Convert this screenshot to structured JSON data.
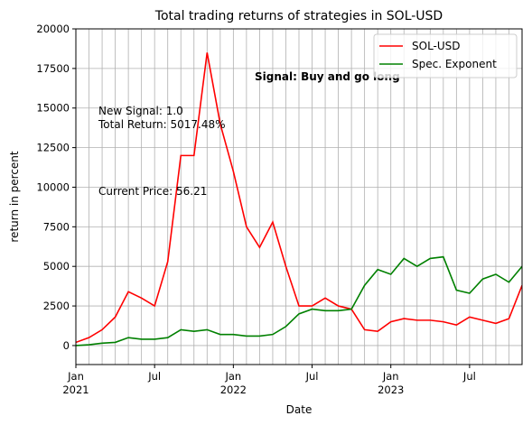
{
  "chart_data": {
    "type": "line",
    "title": "Total trading returns of strategies in SOL-USD",
    "xlabel": "Date",
    "ylabel": "return in percent",
    "x": [
      "2021-01",
      "2021-02",
      "2021-03",
      "2021-04",
      "2021-05",
      "2021-06",
      "2021-07",
      "2021-08",
      "2021-09",
      "2021-10",
      "2021-11",
      "2021-12",
      "2022-01",
      "2022-02",
      "2022-03",
      "2022-04",
      "2022-05",
      "2022-06",
      "2022-07",
      "2022-08",
      "2022-09",
      "2022-10",
      "2022-11",
      "2022-12",
      "2023-01",
      "2023-02",
      "2023-03",
      "2023-04",
      "2023-05",
      "2023-06",
      "2023-07",
      "2023-08",
      "2023-09",
      "2023-10",
      "2023-11"
    ],
    "series": [
      {
        "name": "SOL-USD",
        "color": "#ff0000",
        "values": [
          200,
          500,
          1000,
          1800,
          3400,
          3000,
          2500,
          5300,
          12000,
          12000,
          18500,
          14000,
          11000,
          7500,
          6200,
          7800,
          5000,
          2500,
          2500,
          3000,
          2500,
          2300,
          1000,
          900,
          1500,
          1700,
          1600,
          1600,
          1500,
          1300,
          1800,
          1600,
          1400,
          1700,
          3800
        ]
      },
      {
        "name": "Spec. Exponent",
        "color": "#008000",
        "values": [
          0,
          50,
          150,
          200,
          500,
          400,
          400,
          500,
          1000,
          900,
          1000,
          700,
          700,
          600,
          600,
          700,
          1200,
          2000,
          2300,
          2200,
          2200,
          2300,
          3800,
          4800,
          4500,
          5500,
          5000,
          5500,
          5600,
          3500,
          3300,
          4200,
          4500,
          4000,
          5000
        ]
      }
    ],
    "xlim": [
      "2021-01",
      "2023-11"
    ],
    "xticks": [
      {
        "value": "2021-01",
        "label": "Jan\n2021"
      },
      {
        "value": "2021-07",
        "label": "Jul"
      },
      {
        "value": "2022-01",
        "label": "Jan\n2022"
      },
      {
        "value": "2022-07",
        "label": "Jul"
      },
      {
        "value": "2023-01",
        "label": "Jan\n2023"
      },
      {
        "value": "2023-07",
        "label": "Jul"
      }
    ],
    "ylim": [
      -1200,
      20000
    ],
    "yticks": [
      0,
      2500,
      5000,
      7500,
      10000,
      12500,
      15000,
      17500,
      20000
    ],
    "grid": true,
    "legend": "upper right",
    "annotations": [
      "New Signal: 1.0",
      "Total Return: 5017.48%",
      "Current Price: 56.21"
    ],
    "signal": {
      "text": "Signal: Buy and go long",
      "color": "#008000"
    }
  }
}
